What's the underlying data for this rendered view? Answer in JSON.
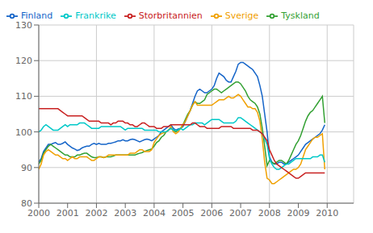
{
  "chart_data": {
    "type": "line",
    "x": [
      2000,
      2000.0833333333,
      2000.1666666667,
      2000.25,
      2000.3333333333,
      2000.4166666667,
      2000.5,
      2000.5833333333,
      2000.6666666667,
      2000.75,
      2000.8333333333,
      2000.9166666667,
      2001,
      2001.0833333333,
      2001.1666666667,
      2001.25,
      2001.3333333333,
      2001.4166666667,
      2001.5,
      2001.5833333333,
      2001.6666666667,
      2001.75,
      2001.8333333333,
      2001.9166666667,
      2002,
      2002.0833333333,
      2002.1666666667,
      2002.25,
      2002.3333333333,
      2002.4166666667,
      2002.5,
      2002.5833333333,
      2002.6666666667,
      2002.75,
      2002.8333333333,
      2002.9166666667,
      2003,
      2003.0833333333,
      2003.1666666667,
      2003.25,
      2003.3333333333,
      2003.4166666667,
      2003.5,
      2003.5833333333,
      2003.6666666667,
      2003.75,
      2003.8333333333,
      2003.9166666667,
      2004,
      2004.0833333333,
      2004.1666666667,
      2004.25,
      2004.3333333333,
      2004.4166666667,
      2004.5,
      2004.5833333333,
      2004.6666666667,
      2004.75,
      2004.8333333333,
      2004.9166666667,
      2005,
      2005.0833333333,
      2005.1666666667,
      2005.25,
      2005.3333333333,
      2005.4166666667,
      2005.5,
      2005.5833333333,
      2005.6666666667,
      2005.75,
      2005.8333333333,
      2005.9166666667,
      2006,
      2006.0833333333,
      2006.1666666667,
      2006.25,
      2006.3333333333,
      2006.4166666667,
      2006.5,
      2006.5833333333,
      2006.6666666667,
      2006.75,
      2006.8333333333,
      2006.9166666667,
      2007,
      2007.0833333333,
      2007.1666666667,
      2007.25,
      2007.3333333333,
      2007.4166666667,
      2007.5,
      2007.5833333333,
      2007.6666666667,
      2007.75,
      2007.8333333333,
      2007.9166666667,
      2008,
      2008.0833333333,
      2008.1666666667,
      2008.25,
      2008.3333333333,
      2008.4166666667,
      2008.5,
      2008.5833333333,
      2008.6666666667,
      2008.75,
      2008.8333333333,
      2008.9166666667,
      2009,
      2009.0833333333,
      2009.1666666667,
      2009.25,
      2009.3333333333,
      2009.4166666667,
      2009.5,
      2009.5833333333,
      2009.6666666667,
      2009.75,
      2009.8333333333,
      2009.9166666667
    ],
    "xlim": [
      2000.0,
      2010.917
    ],
    "xticks": [
      2000,
      2001,
      2002,
      2003,
      2004,
      2005,
      2006,
      2007,
      2008,
      2009,
      2010
    ],
    "ylim": [
      80,
      130
    ],
    "yticks": [
      80,
      90,
      100,
      110,
      120,
      130
    ],
    "grid": true,
    "legend": "upper left",
    "series": [
      {
        "name": "Finland",
        "color": "#1464C8",
        "values": [
          91.5,
          92.5,
          94.5,
          95.5,
          96.5,
          96.5,
          96.8,
          97.0,
          96.5,
          96.5,
          96.8,
          97.2,
          96.5,
          96.0,
          95.5,
          95.2,
          94.8,
          95.0,
          95.5,
          95.8,
          96.0,
          96.0,
          96.5,
          96.8,
          96.5,
          96.8,
          96.5,
          96.5,
          96.5,
          96.8,
          96.8,
          97.0,
          97.2,
          97.5,
          97.5,
          97.8,
          97.5,
          97.5,
          97.8,
          98.0,
          97.8,
          97.5,
          97.2,
          97.5,
          97.8,
          98.0,
          97.8,
          97.5,
          98.0,
          98.5,
          99.0,
          100.0,
          100.5,
          101.0,
          101.5,
          102.0,
          101.0,
          100.5,
          100.8,
          101.0,
          101.5,
          103.0,
          104.5,
          106.0,
          108.0,
          110.0,
          111.5,
          112.0,
          111.5,
          111.0,
          111.0,
          111.5,
          112.0,
          113.0,
          115.0,
          116.5,
          116.0,
          115.5,
          114.5,
          114.0,
          114.0,
          115.5,
          117.0,
          119.0,
          119.5,
          119.5,
          119.0,
          118.5,
          118.0,
          117.5,
          116.5,
          115.5,
          113.0,
          110.0,
          105.0,
          100.0,
          93.0,
          91.5,
          91.0,
          91.0,
          91.5,
          91.5,
          91.0,
          91.0,
          91.5,
          92.0,
          92.5,
          93.0,
          93.5,
          94.5,
          95.5,
          96.5,
          97.0,
          97.5,
          98.0,
          98.5,
          99.0,
          99.5,
          100.5,
          102.0
        ]
      },
      {
        "name": "Tyskland",
        "color": "#32A032",
        "values": [
          91.0,
          92.0,
          94.0,
          95.0,
          96.0,
          96.5,
          96.0,
          95.5,
          95.0,
          94.5,
          94.0,
          93.5,
          93.5,
          93.0,
          93.0,
          93.0,
          93.5,
          93.5,
          93.8,
          94.0,
          94.0,
          93.5,
          93.0,
          92.8,
          92.8,
          93.0,
          93.0,
          92.8,
          93.0,
          93.0,
          93.0,
          93.2,
          93.5,
          93.5,
          93.5,
          93.5,
          93.5,
          93.5,
          93.5,
          93.5,
          93.5,
          93.8,
          94.0,
          94.2,
          94.5,
          94.8,
          95.0,
          95.2,
          96.0,
          97.0,
          97.5,
          98.5,
          99.0,
          100.0,
          100.5,
          101.0,
          100.5,
          100.0,
          100.5,
          101.0,
          102.0,
          103.5,
          105.0,
          106.0,
          107.5,
          108.5,
          108.0,
          108.0,
          108.5,
          109.0,
          110.5,
          111.0,
          111.5,
          112.0,
          112.0,
          111.5,
          111.0,
          111.5,
          112.0,
          112.5,
          113.0,
          113.5,
          114.0,
          114.0,
          113.5,
          112.5,
          111.5,
          110.0,
          109.0,
          108.5,
          108.0,
          107.0,
          105.0,
          101.0,
          96.0,
          90.5,
          92.0,
          91.5,
          91.0,
          91.5,
          92.0,
          92.0,
          91.5,
          91.0,
          92.0,
          93.5,
          95.0,
          96.5,
          97.5,
          99.0,
          101.0,
          103.0,
          104.5,
          105.5,
          106.0,
          107.0,
          108.0,
          109.0,
          110.0,
          102.5
        ]
      },
      {
        "name": "Sverige",
        "color": "#F0A000",
        "values": [
          89.5,
          91.0,
          93.5,
          94.5,
          95.0,
          94.5,
          94.0,
          93.5,
          93.5,
          93.0,
          92.5,
          92.5,
          92.0,
          92.5,
          93.0,
          92.5,
          92.5,
          93.0,
          93.0,
          93.0,
          93.0,
          92.5,
          92.0,
          92.0,
          92.5,
          93.0,
          93.0,
          92.8,
          93.0,
          93.5,
          93.5,
          93.5,
          93.5,
          93.5,
          93.5,
          93.5,
          93.5,
          93.5,
          94.0,
          94.0,
          94.0,
          94.5,
          95.0,
          95.0,
          94.5,
          94.5,
          94.5,
          95.0,
          97.0,
          98.0,
          99.0,
          99.5,
          99.8,
          100.0,
          100.5,
          101.5,
          100.0,
          99.5,
          100.0,
          101.0,
          102.0,
          103.0,
          104.5,
          106.0,
          107.5,
          108.5,
          107.5,
          107.5,
          107.5,
          107.5,
          107.5,
          107.5,
          107.5,
          108.0,
          108.5,
          109.0,
          109.0,
          109.0,
          109.5,
          110.0,
          109.5,
          109.5,
          110.0,
          110.5,
          110.0,
          109.0,
          108.0,
          107.0,
          107.0,
          106.5,
          106.5,
          105.5,
          103.0,
          98.0,
          91.5,
          87.0,
          86.5,
          85.5,
          85.5,
          86.0,
          86.5,
          87.0,
          87.5,
          88.0,
          88.5,
          89.0,
          89.5,
          89.5,
          90.0,
          91.0,
          93.0,
          95.0,
          96.0,
          97.0,
          98.0,
          98.5,
          98.5,
          99.0,
          99.5,
          89.5
        ]
      },
      {
        "name": "Frankrike",
        "color": "#00C8C8",
        "values": [
          100.0,
          100.5,
          101.5,
          102.0,
          101.5,
          101.0,
          100.5,
          100.5,
          100.5,
          101.0,
          101.5,
          102.0,
          101.5,
          102.0,
          102.0,
          102.0,
          102.0,
          102.5,
          102.5,
          102.5,
          102.0,
          101.5,
          101.0,
          101.0,
          101.0,
          101.0,
          101.5,
          101.5,
          101.5,
          101.5,
          101.5,
          101.5,
          101.5,
          101.5,
          101.5,
          101.0,
          100.5,
          101.0,
          101.0,
          101.0,
          101.0,
          101.0,
          101.0,
          101.0,
          100.5,
          100.5,
          100.5,
          100.5,
          100.5,
          100.5,
          100.0,
          100.0,
          100.0,
          100.0,
          100.5,
          101.0,
          100.5,
          100.5,
          100.5,
          101.0,
          100.5,
          101.0,
          101.5,
          102.0,
          102.0,
          102.5,
          102.5,
          102.5,
          102.5,
          102.0,
          102.5,
          103.0,
          103.5,
          103.5,
          103.5,
          103.5,
          103.0,
          102.5,
          102.5,
          102.5,
          102.5,
          102.5,
          103.0,
          104.0,
          104.0,
          103.5,
          103.0,
          102.5,
          102.0,
          101.5,
          101.0,
          100.5,
          100.0,
          99.5,
          98.0,
          96.5,
          92.5,
          91.0,
          90.0,
          89.5,
          89.5,
          90.0,
          90.5,
          91.0,
          91.0,
          91.5,
          92.0,
          92.5,
          92.5,
          92.5,
          92.5,
          92.5,
          92.5,
          92.5,
          93.0,
          93.0,
          93.0,
          93.5,
          93.5,
          91.5
        ]
      },
      {
        "name": "Storbritannien",
        "color": "#C82020",
        "values": [
          106.5,
          106.5,
          106.5,
          106.5,
          106.5,
          106.5,
          106.5,
          106.5,
          106.5,
          106.0,
          105.5,
          105.0,
          104.5,
          104.5,
          104.5,
          104.5,
          104.5,
          104.5,
          104.5,
          104.0,
          103.5,
          103.0,
          103.0,
          103.0,
          103.0,
          103.0,
          102.5,
          102.5,
          102.5,
          102.5,
          102.0,
          102.5,
          102.5,
          103.0,
          103.0,
          103.0,
          102.5,
          102.5,
          102.0,
          102.0,
          101.5,
          101.5,
          102.0,
          102.5,
          102.5,
          102.0,
          101.5,
          101.5,
          101.5,
          101.0,
          101.0,
          101.0,
          101.5,
          101.5,
          101.5,
          102.0,
          102.0,
          102.0,
          102.0,
          102.0,
          102.0,
          102.0,
          102.0,
          102.0,
          102.5,
          102.5,
          102.0,
          101.5,
          101.5,
          101.5,
          101.0,
          101.0,
          101.0,
          101.0,
          101.0,
          101.0,
          101.5,
          101.5,
          101.5,
          101.5,
          101.5,
          101.0,
          101.0,
          101.0,
          101.0,
          101.0,
          101.0,
          101.0,
          101.0,
          100.5,
          100.5,
          100.5,
          100.0,
          99.5,
          98.5,
          97.5,
          95.0,
          93.5,
          92.0,
          91.0,
          90.5,
          90.0,
          89.5,
          89.0,
          88.5,
          88.0,
          87.5,
          87.0,
          87.0,
          87.5,
          88.0,
          88.5,
          88.5,
          88.5,
          88.5,
          88.5,
          88.5,
          88.5,
          88.5,
          88.5
        ]
      }
    ]
  }
}
